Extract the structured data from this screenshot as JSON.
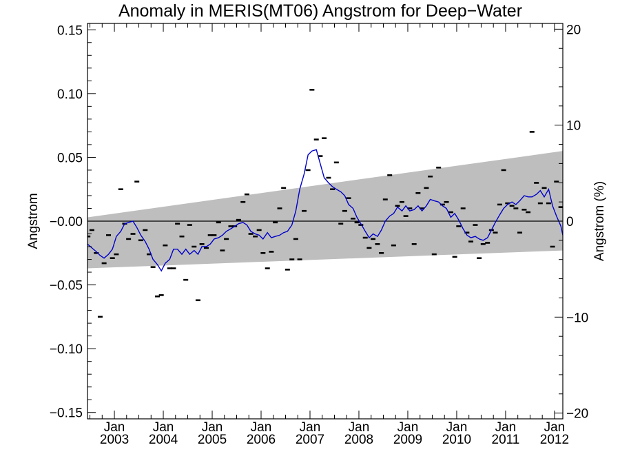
{
  "chart_data": {
    "type": "scatter",
    "title": "Anomaly in MERIS(MT06) Angstrom for Deep−Water",
    "ylabel": "Angstrom",
    "ylabel_right": "Angstrom (%)",
    "xlabel": "",
    "xlim": [
      2002.45,
      2012.17
    ],
    "ylim": [
      -0.155,
      0.155
    ],
    "ylim_right": [
      -20.6,
      20.6
    ],
    "x_ticks": [
      {
        "month": "Jan",
        "year": "2003",
        "x": 2003.0
      },
      {
        "month": "Jan",
        "year": "2004",
        "x": 2004.0
      },
      {
        "month": "Jan",
        "year": "2005",
        "x": 2005.0
      },
      {
        "month": "Jan",
        "year": "2006",
        "x": 2006.0
      },
      {
        "month": "Jan",
        "year": "2007",
        "x": 2007.0
      },
      {
        "month": "Jan",
        "year": "2008",
        "x": 2008.0
      },
      {
        "month": "Jan",
        "year": "2009",
        "x": 2009.0
      },
      {
        "month": "Jan",
        "year": "2010",
        "x": 2010.0
      },
      {
        "month": "Jan",
        "year": "2011",
        "x": 2011.0
      },
      {
        "month": "Jan",
        "year": "2012",
        "x": 2012.0
      }
    ],
    "y_ticks_left": [
      {
        "label": "0.15",
        "value": 0.15
      },
      {
        "label": "0.10",
        "value": 0.1
      },
      {
        "label": "0.05",
        "value": 0.05
      },
      {
        "label": "−0.00",
        "value": 0.0
      },
      {
        "label": "−0.05",
        "value": -0.05
      },
      {
        "label": "−0.10",
        "value": -0.1
      },
      {
        "label": "−0.15",
        "value": -0.15
      }
    ],
    "y_ticks_right": [
      {
        "label": "20",
        "value": 20
      },
      {
        "label": "10",
        "value": 10
      },
      {
        "label": "0",
        "value": 0
      },
      {
        "label": "−10",
        "value": -10
      },
      {
        "label": "−20",
        "value": -20
      }
    ],
    "zero_line": 0.0,
    "trend_band": {
      "x": [
        2002.45,
        2012.17
      ],
      "upper": [
        0.003,
        0.055
      ],
      "lower": [
        -0.037,
        -0.023
      ],
      "color": "#bebebe"
    },
    "monthly_points": {
      "color": "#000000",
      "x": [
        2002.46,
        2002.54,
        2002.63,
        2002.71,
        2002.79,
        2002.88,
        2002.96,
        2003.04,
        2003.13,
        2003.21,
        2003.29,
        2003.38,
        2003.46,
        2003.54,
        2003.63,
        2003.71,
        2003.79,
        2003.88,
        2003.96,
        2004.04,
        2004.13,
        2004.21,
        2004.29,
        2004.38,
        2004.46,
        2004.54,
        2004.63,
        2004.71,
        2004.79,
        2004.88,
        2004.96,
        2005.04,
        2005.13,
        2005.21,
        2005.29,
        2005.38,
        2005.46,
        2005.54,
        2005.63,
        2005.71,
        2005.79,
        2005.88,
        2005.96,
        2006.04,
        2006.13,
        2006.21,
        2006.29,
        2006.38,
        2006.46,
        2006.54,
        2006.63,
        2006.71,
        2006.79,
        2006.88,
        2006.96,
        2007.04,
        2007.13,
        2007.21,
        2007.29,
        2007.38,
        2007.46,
        2007.54,
        2007.63,
        2007.71,
        2007.79,
        2007.88,
        2007.96,
        2008.04,
        2008.13,
        2008.21,
        2008.29,
        2008.38,
        2008.46,
        2008.54,
        2008.63,
        2008.71,
        2008.79,
        2008.88,
        2008.96,
        2009.04,
        2009.13,
        2009.21,
        2009.29,
        2009.38,
        2009.46,
        2009.54,
        2009.63,
        2009.71,
        2009.79,
        2009.88,
        2009.96,
        2010.04,
        2010.13,
        2010.21,
        2010.29,
        2010.38,
        2010.46,
        2010.54,
        2010.63,
        2010.71,
        2010.79,
        2010.88,
        2010.96,
        2011.04,
        2011.13,
        2011.21,
        2011.29,
        2011.38,
        2011.46,
        2011.54,
        2011.63,
        2011.71,
        2011.79,
        2011.88,
        2011.96,
        2012.04,
        2012.13
      ],
      "y": [
        -0.012,
        -0.007,
        -0.025,
        -0.075,
        -0.033,
        -0.011,
        -0.029,
        -0.026,
        0.025,
        -0.002,
        -0.014,
        -0.01,
        0.031,
        -0.015,
        -0.007,
        -0.026,
        -0.036,
        -0.059,
        -0.058,
        -0.019,
        -0.037,
        -0.037,
        -0.002,
        -0.012,
        -0.046,
        -0.003,
        -0.02,
        -0.062,
        -0.018,
        -0.021,
        -0.011,
        -0.011,
        -0.001,
        -0.023,
        -0.014,
        -0.004,
        -0.004,
        0.001,
        0.015,
        0.021,
        -0.01,
        -0.012,
        -0.007,
        -0.025,
        -0.037,
        -0.024,
        -0.001,
        0.01,
        0.026,
        -0.038,
        -0.03,
        -0.014,
        -0.03,
        0.008,
        0.04,
        0.103,
        0.064,
        0.051,
        0.065,
        0.034,
        0.025,
        0.046,
        -0.002,
        0.008,
        0.018,
        0.002,
        -0.001,
        -0.003,
        -0.013,
        -0.021,
        -0.014,
        -0.018,
        -0.025,
        0.017,
        0.036,
        -0.019,
        0.012,
        0.015,
        0.004,
        0.01,
        -0.018,
        0.022,
        0.01,
        0.026,
        0.035,
        -0.026,
        0.042,
        0.013,
        0.015,
        0.007,
        -0.028,
        -0.004,
        0.01,
        -0.009,
        -0.016,
        -0.003,
        -0.029,
        -0.018,
        -0.017,
        -0.007,
        -0.009,
        0.013,
        0.04,
        0.014,
        0.012,
        0.01,
        -0.009,
        0.009,
        0.007,
        0.07,
        0.03,
        0.014,
        0.026,
        0.014,
        -0.02,
        0.031,
        0.011
      ]
    },
    "smoothed_series": {
      "name": "",
      "color": "#0000cc",
      "x": [
        2002.45,
        2002.54,
        2002.63,
        2002.71,
        2002.79,
        2002.88,
        2002.96,
        2003.04,
        2003.13,
        2003.21,
        2003.29,
        2003.38,
        2003.46,
        2003.54,
        2003.63,
        2003.71,
        2003.79,
        2003.88,
        2003.96,
        2004.04,
        2004.13,
        2004.21,
        2004.29,
        2004.38,
        2004.46,
        2004.54,
        2004.63,
        2004.71,
        2004.79,
        2004.88,
        2004.96,
        2005.04,
        2005.13,
        2005.21,
        2005.29,
        2005.38,
        2005.46,
        2005.54,
        2005.63,
        2005.71,
        2005.79,
        2005.88,
        2005.96,
        2006.04,
        2006.13,
        2006.21,
        2006.29,
        2006.38,
        2006.46,
        2006.54,
        2006.63,
        2006.71,
        2006.79,
        2006.88,
        2006.96,
        2007.04,
        2007.13,
        2007.21,
        2007.29,
        2007.38,
        2007.46,
        2007.54,
        2007.63,
        2007.71,
        2007.79,
        2007.88,
        2007.96,
        2008.04,
        2008.13,
        2008.21,
        2008.29,
        2008.38,
        2008.46,
        2008.54,
        2008.63,
        2008.71,
        2008.79,
        2008.88,
        2008.96,
        2009.04,
        2009.13,
        2009.21,
        2009.29,
        2009.38,
        2009.46,
        2009.54,
        2009.63,
        2009.71,
        2009.79,
        2009.88,
        2009.96,
        2010.04,
        2010.13,
        2010.21,
        2010.29,
        2010.38,
        2010.46,
        2010.54,
        2010.63,
        2010.71,
        2010.79,
        2010.88,
        2010.96,
        2011.04,
        2011.13,
        2011.21,
        2011.29,
        2011.38,
        2011.46,
        2011.54,
        2011.63,
        2011.71,
        2011.79,
        2011.88,
        2011.96,
        2012.04,
        2012.13,
        2012.17
      ],
      "y": [
        -0.018,
        -0.021,
        -0.024,
        -0.027,
        -0.029,
        -0.026,
        -0.022,
        -0.012,
        -0.008,
        -0.002,
        -0.001,
        0.0,
        -0.005,
        -0.011,
        -0.016,
        -0.022,
        -0.03,
        -0.034,
        -0.039,
        -0.033,
        -0.03,
        -0.022,
        -0.022,
        -0.026,
        -0.022,
        -0.026,
        -0.023,
        -0.026,
        -0.02,
        -0.02,
        -0.018,
        -0.014,
        -0.013,
        -0.011,
        -0.008,
        -0.006,
        -0.004,
        -0.002,
        -0.001,
        -0.003,
        -0.008,
        -0.01,
        -0.011,
        -0.014,
        -0.009,
        -0.013,
        -0.012,
        -0.011,
        -0.009,
        -0.008,
        -0.003,
        0.008,
        0.025,
        0.037,
        0.052,
        0.055,
        0.056,
        0.045,
        0.034,
        0.03,
        0.027,
        0.025,
        0.023,
        0.02,
        0.013,
        0.01,
        0.003,
        -0.002,
        -0.008,
        -0.013,
        -0.01,
        -0.012,
        -0.007,
        0.0,
        0.004,
        0.006,
        0.011,
        0.008,
        0.012,
        0.008,
        0.009,
        0.012,
        0.008,
        0.012,
        0.017,
        0.016,
        0.015,
        0.012,
        0.01,
        0.003,
        0.006,
        0.001,
        -0.006,
        -0.011,
        -0.013,
        -0.012,
        -0.014,
        -0.015,
        -0.013,
        -0.007,
        -0.001,
        0.005,
        0.01,
        0.013,
        0.015,
        0.013,
        0.016,
        0.02,
        0.019,
        0.019,
        0.021,
        0.024,
        0.019,
        0.025,
        0.012,
        0.004,
        -0.004,
        -0.011
      ]
    }
  }
}
